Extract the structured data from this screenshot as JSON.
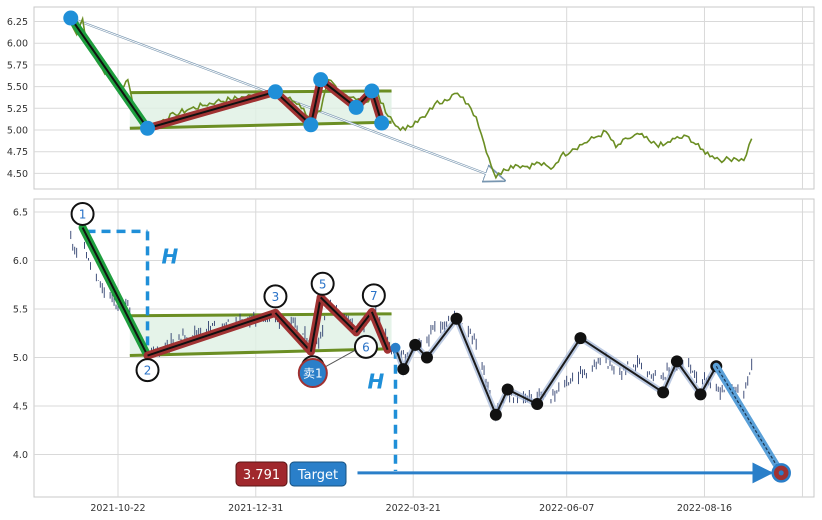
{
  "chart_data": [
    {
      "panel": "top",
      "type": "line",
      "ylim": [
        4.35,
        6.35
      ],
      "yticks": [
        "6.25",
        "6.00",
        "5.75",
        "5.50",
        "5.25",
        "5.00",
        "4.75",
        "4.50"
      ],
      "grid": true,
      "colors": {
        "price": "#6b8e23",
        "uptrend": "#a03232",
        "downtrend": "#1e9e3e",
        "channel": "#6b8e23",
        "marker": "#1f8fd8",
        "arrow": "#8aa7c0"
      },
      "price": [
        [
          "2021-09-28",
          6.23
        ],
        [
          "2021-10-01",
          6.1
        ],
        [
          "2021-10-04",
          6.28
        ],
        [
          "2021-10-06",
          6.05
        ],
        [
          "2021-10-08",
          5.95
        ],
        [
          "2021-10-11",
          5.8
        ],
        [
          "2021-10-14",
          5.7
        ],
        [
          "2021-10-18",
          5.62
        ],
        [
          "2021-10-21",
          5.55
        ],
        [
          "2021-10-25",
          5.5
        ],
        [
          "2021-10-27",
          5.58
        ],
        [
          "2021-10-30",
          5.25
        ],
        [
          "2021-11-03",
          5.12
        ],
        [
          "2021-11-06",
          5.02
        ],
        [
          "2021-11-10",
          5.05
        ],
        [
          "2021-11-14",
          5.12
        ],
        [
          "2021-11-20",
          5.18
        ],
        [
          "2021-11-27",
          5.24
        ],
        [
          "2021-12-04",
          5.28
        ],
        [
          "2021-12-11",
          5.33
        ],
        [
          "2021-12-18",
          5.35
        ],
        [
          "2021-12-25",
          5.38
        ],
        [
          "2022-01-01",
          5.4
        ],
        [
          "2022-01-08",
          5.42
        ],
        [
          "2022-01-15",
          5.38
        ],
        [
          "2022-01-22",
          5.3
        ],
        [
          "2022-01-29",
          5.1
        ],
        [
          "2022-02-02",
          5.22
        ],
        [
          "2022-02-06",
          5.58
        ],
        [
          "2022-02-12",
          5.45
        ],
        [
          "2022-02-20",
          5.35
        ],
        [
          "2022-02-25",
          5.32
        ],
        [
          "2022-03-02",
          5.48
        ],
        [
          "2022-03-07",
          5.2
        ],
        [
          "2022-03-12",
          5.05
        ],
        [
          "2022-03-17",
          5.0
        ],
        [
          "2022-03-22",
          5.1
        ],
        [
          "2022-03-27",
          5.15
        ],
        [
          "2022-04-01",
          5.3
        ],
        [
          "2022-04-06",
          5.35
        ],
        [
          "2022-04-11",
          5.42
        ],
        [
          "2022-04-14",
          5.38
        ],
        [
          "2022-04-18",
          5.3
        ],
        [
          "2022-04-22",
          5.15
        ],
        [
          "2022-04-26",
          4.85
        ],
        [
          "2022-05-02",
          4.45
        ],
        [
          "2022-05-06",
          4.55
        ],
        [
          "2022-05-12",
          4.6
        ],
        [
          "2022-05-18",
          4.58
        ],
        [
          "2022-05-24",
          4.62
        ],
        [
          "2022-05-30",
          4.55
        ],
        [
          "2022-06-04",
          4.7
        ],
        [
          "2022-06-10",
          4.78
        ],
        [
          "2022-06-16",
          4.85
        ],
        [
          "2022-06-22",
          4.92
        ],
        [
          "2022-06-27",
          4.98
        ],
        [
          "2022-07-02",
          4.8
        ],
        [
          "2022-07-08",
          4.9
        ],
        [
          "2022-07-14",
          4.95
        ],
        [
          "2022-07-20",
          4.85
        ],
        [
          "2022-07-26",
          4.82
        ],
        [
          "2022-08-01",
          4.9
        ],
        [
          "2022-08-08",
          4.92
        ],
        [
          "2022-08-14",
          4.78
        ],
        [
          "2022-08-20",
          4.7
        ],
        [
          "2022-08-26",
          4.65
        ],
        [
          "2022-08-31",
          4.68
        ],
        [
          "2022-09-05",
          4.65
        ],
        [
          "2022-09-09",
          4.9
        ]
      ],
      "pivots": [
        [
          "2021-09-28",
          6.29
        ],
        [
          "2021-11-06",
          5.02
        ],
        [
          "2022-01-10",
          5.44
        ],
        [
          "2022-01-28",
          5.06
        ],
        [
          "2022-02-02",
          5.58
        ],
        [
          "2022-02-20",
          5.26
        ],
        [
          "2022-02-28",
          5.45
        ],
        [
          "2022-03-05",
          5.08
        ]
      ],
      "channel_upper": [
        [
          "2021-10-28",
          5.43
        ],
        [
          "2022-03-10",
          5.45
        ]
      ],
      "channel_lower": [
        [
          "2021-10-28",
          5.02
        ],
        [
          "2022-03-10",
          5.09
        ]
      ],
      "trend_arrow": [
        [
          "2021-09-28",
          6.29
        ],
        [
          "2022-05-06",
          4.42
        ]
      ]
    },
    {
      "panel": "bottom",
      "type": "candlestick",
      "ylim": [
        3.55,
        6.62
      ],
      "yticks": [
        "6.5",
        "6.0",
        "5.5",
        "5.0",
        "4.5",
        "4.0"
      ],
      "xticks": [
        "2021-10-22",
        "2021-12-31",
        "2022-03-21",
        "2022-06-07",
        "2022-08-16"
      ],
      "grid": true,
      "colors": {
        "candle": "#2e3f6e",
        "uptrend": "#a03232",
        "downtrend": "#1e9e3e",
        "projection": "#1a1a1a",
        "target": "#2a7fc9",
        "height": "#1f8fd8"
      },
      "pattern_points": [
        {
          "label": "1",
          "date": "2021-10-04",
          "price": 6.34
        },
        {
          "label": "2",
          "date": "2021-11-06",
          "price": 5.02
        },
        {
          "label": "3",
          "date": "2022-01-10",
          "price": 5.46
        },
        {
          "label": "",
          "date": "2022-01-28",
          "price": 5.06
        },
        {
          "label": "5",
          "date": "2022-02-02",
          "price": 5.62
        },
        {
          "label": "",
          "date": "2022-02-20",
          "price": 5.26
        },
        {
          "label": "7",
          "date": "2022-02-28",
          "price": 5.47
        },
        {
          "label": "",
          "date": "2022-03-08",
          "price": 5.08
        }
      ],
      "circle_labels": [
        {
          "text": "1",
          "date": "2021-10-04",
          "price": 6.48
        },
        {
          "text": "2",
          "date": "2021-11-06",
          "price": 4.87
        },
        {
          "text": "3",
          "date": "2022-01-10",
          "price": 5.63
        },
        {
          "text": "",
          "date": "2022-01-29",
          "price": 4.9
        },
        {
          "text": "5",
          "date": "2022-02-03",
          "price": 5.76
        },
        {
          "text": "6",
          "date": "2022-02-25",
          "price": 5.11
        },
        {
          "text": "7",
          "date": "2022-03-01",
          "price": 5.64
        }
      ],
      "sell_signal": {
        "text": "卖1",
        "date": "2022-01-29",
        "price": 4.84
      },
      "height_marker": {
        "text": "H",
        "top": 6.3,
        "bottom": 5.02
      },
      "height_marker_2": {
        "text": "H"
      },
      "channel_upper": [
        [
          "2021-10-28",
          5.43
        ],
        [
          "2022-03-10",
          5.45
        ]
      ],
      "channel_lower": [
        [
          "2021-10-28",
          5.02
        ],
        [
          "2022-03-10",
          5.09
        ]
      ],
      "projection_path": [
        [
          "2022-03-12",
          5.1
        ],
        [
          "2022-03-16",
          4.88
        ],
        [
          "2022-03-22",
          5.13
        ],
        [
          "2022-03-28",
          5.0
        ],
        [
          "2022-04-12",
          5.4
        ],
        [
          "2022-05-02",
          4.41
        ],
        [
          "2022-05-08",
          4.67
        ],
        [
          "2022-05-23",
          4.52
        ],
        [
          "2022-06-14",
          5.2
        ],
        [
          "2022-07-26",
          4.64
        ],
        [
          "2022-08-02",
          4.96
        ],
        [
          "2022-08-14",
          4.62
        ],
        [
          "2022-08-22",
          4.91
        ]
      ],
      "target_arrow": [
        [
          "2022-08-22",
          4.91
        ],
        [
          "2022-09-24",
          3.81
        ]
      ],
      "target": {
        "value": "3.791",
        "label": "Target",
        "date": "2022-09-24",
        "price": 3.81
      },
      "target_line": [
        [
          "2022-03-12",
          3.81
        ],
        [
          "2022-09-24",
          3.81
        ]
      ]
    }
  ]
}
